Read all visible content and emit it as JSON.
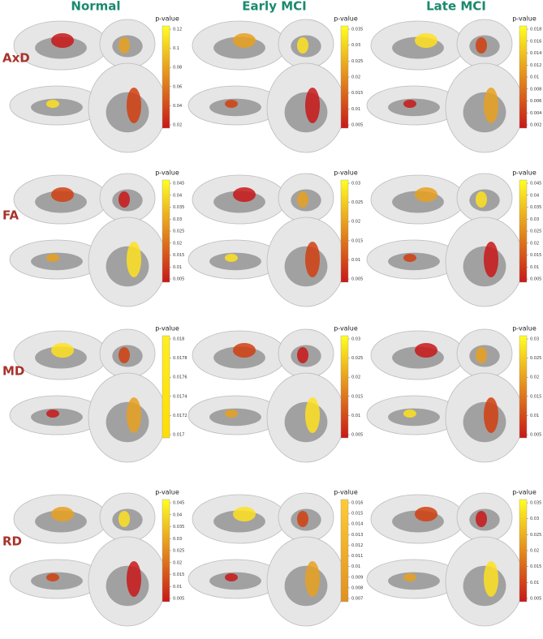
{
  "columns": [
    "Normal",
    "Early MCI",
    "Late MCI"
  ],
  "rows": [
    "AxD",
    "FA",
    "MD",
    "RD"
  ],
  "panels": [
    [
      {
        "legend_title": "p-value",
        "colors": [
          "#ffff22",
          "#c81818"
        ],
        "ticks": [
          0.12,
          0.1,
          0.08,
          0.06,
          0.04,
          0.02
        ]
      },
      {
        "legend_title": "p-value",
        "colors": [
          "#ffff22",
          "#c81818"
        ],
        "ticks": [
          0.035,
          0.03,
          0.025,
          0.02,
          0.015,
          0.01,
          0.005
        ]
      },
      {
        "legend_title": "p-value",
        "colors": [
          "#ffff22",
          "#c81818"
        ],
        "ticks": [
          0.018,
          0.016,
          0.014,
          0.012,
          0.01,
          0.008,
          0.006,
          0.004,
          0.002
        ]
      }
    ],
    [
      {
        "legend_title": "p-value",
        "colors": [
          "#ffff22",
          "#c81818"
        ],
        "ticks": [
          0.045,
          0.04,
          0.035,
          0.03,
          0.025,
          0.02,
          0.015,
          0.01,
          0.005
        ]
      },
      {
        "legend_title": "p-value",
        "colors": [
          "#ffff22",
          "#c81818"
        ],
        "ticks": [
          0.03,
          0.025,
          0.02,
          0.015,
          0.01,
          0.005
        ]
      },
      {
        "legend_title": "p-value",
        "colors": [
          "#ffff22",
          "#c81818"
        ],
        "ticks": [
          0.045,
          0.04,
          0.035,
          0.03,
          0.025,
          0.02,
          0.015,
          0.01,
          0.005
        ]
      }
    ],
    [
      {
        "legend_title": "p-value",
        "colors": [
          "#ffee22",
          "#ffdd00"
        ],
        "ticks": [
          0.018,
          0.0178,
          0.0176,
          0.0174,
          0.0172,
          0.017
        ]
      },
      {
        "legend_title": "p-value",
        "colors": [
          "#ffff22",
          "#c81818"
        ],
        "ticks": [
          0.03,
          0.025,
          0.02,
          0.015,
          0.01,
          0.005
        ]
      },
      {
        "legend_title": "p-value",
        "colors": [
          "#ffff22",
          "#c81818"
        ],
        "ticks": [
          0.03,
          0.025,
          0.02,
          0.015,
          0.01,
          0.005
        ]
      }
    ],
    [
      {
        "legend_title": "p-value",
        "colors": [
          "#ffff22",
          "#c81818"
        ],
        "ticks": [
          0.045,
          0.04,
          0.035,
          0.03,
          0.025,
          0.02,
          0.015,
          0.01,
          0.005
        ]
      },
      {
        "legend_title": "p-value",
        "colors": [
          "#ffcc33",
          "#e09020"
        ],
        "ticks": [
          0.016,
          0.015,
          0.014,
          0.013,
          0.012,
          0.011,
          0.01,
          0.009,
          0.008,
          0.007
        ]
      },
      {
        "legend_title": "p-value",
        "colors": [
          "#ffff22",
          "#c81818"
        ],
        "ticks": [
          0.035,
          0.03,
          0.025,
          0.02,
          0.015,
          0.01,
          0.005
        ]
      }
    ]
  ]
}
